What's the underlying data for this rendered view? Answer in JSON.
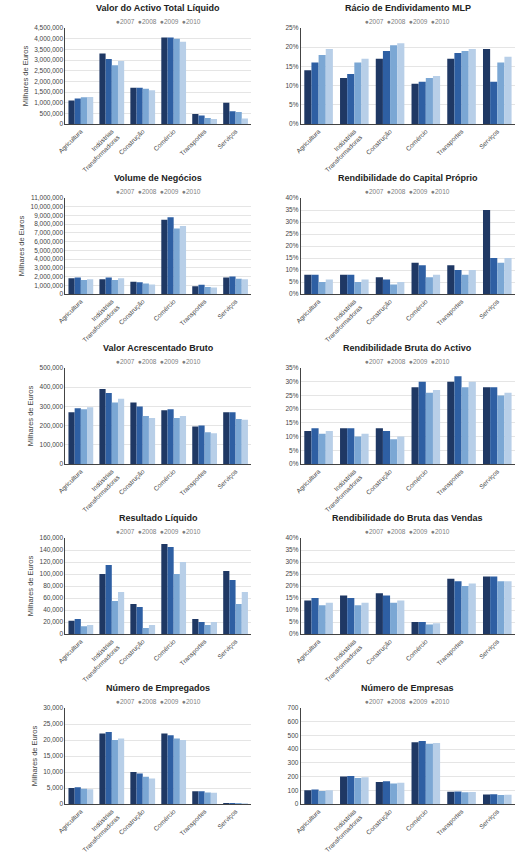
{
  "chart_data": [
    {
      "type": "bar",
      "title": "Valor do Activo Total Líquido",
      "subtitle": "●2007  ●2008  ●2009  ●2010",
      "ylabel": "Milhares de Euros",
      "categories": [
        "Agricultura",
        "Indústrias\nTransformadoras",
        "Construção",
        "Comércio",
        "Transportes",
        "Serviços"
      ],
      "series": [
        {
          "name": "2007",
          "color": "#1f3864",
          "values": [
            1100000,
            3300000,
            1700000,
            4050000,
            470000,
            1000000
          ]
        },
        {
          "name": "2008",
          "color": "#2e5fa3",
          "values": [
            1200000,
            3050000,
            1700000,
            4050000,
            400000,
            600000
          ]
        },
        {
          "name": "2009",
          "color": "#7ba7d4",
          "values": [
            1250000,
            2750000,
            1650000,
            4000000,
            280000,
            560000
          ]
        },
        {
          "name": "2010",
          "color": "#b8cfe8",
          "values": [
            1260000,
            2950000,
            1580000,
            3850000,
            240000,
            260000
          ]
        }
      ],
      "ylim": [
        0,
        4500000
      ],
      "yticks": [
        0,
        {
          "value": 500000,
          "label": "500,000"
        },
        {
          "value": 1000000,
          "label": "1,000,000"
        },
        {
          "value": 1500000,
          "label": "1,500,000"
        },
        {
          "value": 2000000,
          "label": "2,000,000"
        },
        {
          "value": 2500000,
          "label": "2,500,000"
        },
        {
          "value": 3000000,
          "label": "3,000,000"
        },
        {
          "value": 3500000,
          "label": "3,500,000"
        },
        {
          "value": 4000000,
          "label": "4,000,000"
        },
        {
          "value": 4500000,
          "label": "4,500,000"
        }
      ],
      "grid": true
    },
    {
      "type": "bar",
      "title": "Rácio de Endividamento MLP",
      "subtitle": "●2007  ●2008  ●2009  ●2010",
      "categories": [
        "Agricultura",
        "Indústrias\nTransformadoras",
        "Construção",
        "Comércio",
        "Transportes",
        "Serviços"
      ],
      "series": [
        {
          "name": "2007",
          "color": "#1f3864",
          "values": [
            14,
            12,
            17,
            10.5,
            17,
            19.5
          ]
        },
        {
          "name": "2008",
          "color": "#2e5fa3",
          "values": [
            16,
            13,
            19,
            11,
            18.5,
            11
          ]
        },
        {
          "name": "2009",
          "color": "#7ba7d4",
          "values": [
            18,
            16,
            20.5,
            12,
            19,
            16
          ]
        },
        {
          "name": "2010",
          "color": "#b8cfe8",
          "values": [
            19.5,
            17,
            21,
            12.5,
            19.5,
            17.5
          ]
        }
      ],
      "ylim": [
        0,
        25
      ],
      "yticks": [
        {
          "value": 0,
          "label": "0%"
        },
        {
          "value": 5,
          "label": "5%"
        },
        {
          "value": 10,
          "label": "10%"
        },
        {
          "value": 15,
          "label": "15%"
        },
        {
          "value": 20,
          "label": "20%"
        },
        {
          "value": 25,
          "label": "25%"
        }
      ],
      "grid": true
    },
    {
      "type": "bar",
      "title": "Volume de Negócios",
      "subtitle": "●2007  ●2008  ●2009  ●2010",
      "ylabel": "Milhares de Euros",
      "categories": [
        "Agricultura",
        "Indústrias\nTransformadoras",
        "Construção",
        "Comércio",
        "Transportes",
        "Serviços"
      ],
      "series": [
        {
          "name": "2007",
          "color": "#1f3864",
          "values": [
            1800000,
            1700000,
            1400000,
            8500000,
            900000,
            1900000
          ]
        },
        {
          "name": "2008",
          "color": "#2e5fa3",
          "values": [
            1900000,
            1900000,
            1350000,
            8800000,
            1050000,
            2000000
          ]
        },
        {
          "name": "2009",
          "color": "#7ba7d4",
          "values": [
            1600000,
            1600000,
            1200000,
            7500000,
            800000,
            1750000
          ]
        },
        {
          "name": "2010",
          "color": "#b8cfe8",
          "values": [
            1700000,
            1800000,
            1100000,
            7800000,
            750000,
            1700000
          ]
        }
      ],
      "ylim": [
        0,
        11000000
      ],
      "yticks": [
        0,
        {
          "value": 1000000,
          "label": "1,000,000"
        },
        {
          "value": 2000000,
          "label": "2,000,000"
        },
        {
          "value": 3000000,
          "label": "3,000,000"
        },
        {
          "value": 4000000,
          "label": "4,000,000"
        },
        {
          "value": 5000000,
          "label": "5,000,000"
        },
        {
          "value": 6000000,
          "label": "6,000,000"
        },
        {
          "value": 7000000,
          "label": "7,000,000"
        },
        {
          "value": 8000000,
          "label": "8,000,000"
        },
        {
          "value": 9000000,
          "label": "9,000,000"
        },
        {
          "value": 10000000,
          "label": "10,000,000"
        },
        {
          "value": 11000000,
          "label": "11,000,000"
        }
      ],
      "grid": true
    },
    {
      "type": "bar",
      "title": "Rendibilidade do Capital Próprio",
      "subtitle": "●2007  ●2008  ●2009  ●2010",
      "categories": [
        "Agricultura",
        "Indústrias\nTransformadoras",
        "Construção",
        "Comércio",
        "Transportes",
        "Serviços"
      ],
      "series": [
        {
          "name": "2007",
          "color": "#1f3864",
          "values": [
            8,
            8,
            7,
            13,
            12,
            35
          ]
        },
        {
          "name": "2008",
          "color": "#2e5fa3",
          "values": [
            8,
            8,
            6,
            12,
            10,
            15
          ]
        },
        {
          "name": "2009",
          "color": "#7ba7d4",
          "values": [
            5,
            5,
            4,
            7,
            8,
            13
          ]
        },
        {
          "name": "2010",
          "color": "#b8cfe8",
          "values": [
            6,
            6,
            5,
            8,
            10,
            15
          ]
        }
      ],
      "ylim": [
        0,
        40
      ],
      "yticks": [
        {
          "value": 0,
          "label": "0%"
        },
        {
          "value": 5,
          "label": "5%"
        },
        {
          "value": 10,
          "label": "10%"
        },
        {
          "value": 15,
          "label": "15%"
        },
        {
          "value": 20,
          "label": "20%"
        },
        {
          "value": 25,
          "label": "25%"
        },
        {
          "value": 30,
          "label": "30%"
        },
        {
          "value": 35,
          "label": "35%"
        },
        {
          "value": 40,
          "label": "40%"
        }
      ],
      "grid": true
    },
    {
      "type": "bar",
      "title": "Valor Acrescentado Bruto",
      "subtitle": "●2007  ●2008  ●2009  ●2010",
      "ylabel": "Milhares de Euros",
      "categories": [
        "Agricultura",
        "Indústrias\nTransformadoras",
        "Construção",
        "Comércio",
        "Transportes",
        "Serviços"
      ],
      "series": [
        {
          "name": "2007",
          "color": "#1f3864",
          "values": [
            270000,
            390000,
            320000,
            280000,
            195000,
            270000
          ]
        },
        {
          "name": "2008",
          "color": "#2e5fa3",
          "values": [
            290000,
            370000,
            300000,
            285000,
            200000,
            270000
          ]
        },
        {
          "name": "2009",
          "color": "#7ba7d4",
          "values": [
            285000,
            320000,
            250000,
            240000,
            165000,
            235000
          ]
        },
        {
          "name": "2010",
          "color": "#b8cfe8",
          "values": [
            295000,
            340000,
            240000,
            250000,
            160000,
            230000
          ]
        }
      ],
      "ylim": [
        0,
        500000
      ],
      "yticks": [
        0,
        {
          "value": 100000,
          "label": "100,000"
        },
        {
          "value": 200000,
          "label": "200,000"
        },
        {
          "value": 300000,
          "label": "300,000"
        },
        {
          "value": 400000,
          "label": "400,000"
        },
        {
          "value": 500000,
          "label": "500,000"
        }
      ],
      "grid": true
    },
    {
      "type": "bar",
      "title": "Rendibilidade Bruta do Activo",
      "subtitle": "●2007  ●2008  ●2009  ●2010",
      "categories": [
        "Agricultura",
        "Indústrias\nTransformadoras",
        "Construção",
        "Comércio",
        "Transportes",
        "Serviços"
      ],
      "series": [
        {
          "name": "2007",
          "color": "#1f3864",
          "values": [
            12,
            13,
            13,
            28,
            30,
            28
          ]
        },
        {
          "name": "2008",
          "color": "#2e5fa3",
          "values": [
            13,
            13,
            12,
            30,
            32,
            28
          ]
        },
        {
          "name": "2009",
          "color": "#7ba7d4",
          "values": [
            11,
            10,
            9,
            26,
            28,
            25
          ]
        },
        {
          "name": "2010",
          "color": "#b8cfe8",
          "values": [
            12,
            11,
            10,
            27,
            30,
            26
          ]
        }
      ],
      "ylim": [
        0,
        35
      ],
      "yticks": [
        {
          "value": 0,
          "label": "0%"
        },
        {
          "value": 5,
          "label": "5%"
        },
        {
          "value": 10,
          "label": "10%"
        },
        {
          "value": 15,
          "label": "15%"
        },
        {
          "value": 20,
          "label": "20%"
        },
        {
          "value": 25,
          "label": "25%"
        },
        {
          "value": 30,
          "label": "30%"
        },
        {
          "value": 35,
          "label": "35%"
        }
      ],
      "grid": true
    },
    {
      "type": "bar",
      "title": "Resultado Líquido",
      "subtitle": "●2007  ●2008  ●2009  ●2010",
      "ylabel": "Milhares de Euros",
      "categories": [
        "Agricultura",
        "Indústrias\nTransformadoras",
        "Construção",
        "Comércio",
        "Transportes",
        "Serviços"
      ],
      "series": [
        {
          "name": "2007",
          "color": "#1f3864",
          "values": [
            22000,
            100000,
            50000,
            150000,
            25000,
            105000
          ]
        },
        {
          "name": "2008",
          "color": "#2e5fa3",
          "values": [
            25000,
            115000,
            45000,
            145000,
            20000,
            90000
          ]
        },
        {
          "name": "2009",
          "color": "#7ba7d4",
          "values": [
            13000,
            55000,
            10000,
            100000,
            15000,
            50000
          ]
        },
        {
          "name": "2010",
          "color": "#b8cfe8",
          "values": [
            15000,
            70000,
            15000,
            120000,
            20000,
            70000
          ]
        }
      ],
      "ylim": [
        0,
        160000
      ],
      "yticks": [
        0,
        {
          "value": 20000,
          "label": "20,000"
        },
        {
          "value": 40000,
          "label": "40,000"
        },
        {
          "value": 60000,
          "label": "60,000"
        },
        {
          "value": 80000,
          "label": "80,000"
        },
        {
          "value": 100000,
          "label": "100,000"
        },
        {
          "value": 120000,
          "label": "120,000"
        },
        {
          "value": 140000,
          "label": "140,000"
        },
        {
          "value": 160000,
          "label": "160,000"
        }
      ],
      "grid": true
    },
    {
      "type": "bar",
      "title": "Rendibilidade do Bruta das Vendas",
      "subtitle": "●2007  ●2008  ●2009  ●2010",
      "categories": [
        "Agricultura",
        "Indústrias\nTransformadoras",
        "Construção",
        "Comércio",
        "Transportes",
        "Serviços"
      ],
      "series": [
        {
          "name": "2007",
          "color": "#1f3864",
          "values": [
            14,
            16,
            17,
            5,
            23,
            24
          ]
        },
        {
          "name": "2008",
          "color": "#2e5fa3",
          "values": [
            15,
            15,
            16,
            5,
            22,
            24
          ]
        },
        {
          "name": "2009",
          "color": "#7ba7d4",
          "values": [
            12,
            12,
            13,
            4,
            20,
            22
          ]
        },
        {
          "name": "2010",
          "color": "#b8cfe8",
          "values": [
            13,
            13,
            14,
            4.5,
            21,
            22
          ]
        }
      ],
      "ylim": [
        0,
        40
      ],
      "yticks": [
        {
          "value": 0,
          "label": "0%"
        },
        {
          "value": 5,
          "label": "5%"
        },
        {
          "value": 10,
          "label": "10%"
        },
        {
          "value": 15,
          "label": "15%"
        },
        {
          "value": 20,
          "label": "20%"
        },
        {
          "value": 25,
          "label": "25%"
        },
        {
          "value": 30,
          "label": "30%"
        },
        {
          "value": 35,
          "label": "35%"
        },
        {
          "value": 40,
          "label": "40%"
        }
      ],
      "grid": true
    },
    {
      "type": "bar",
      "title": "Número de Empregados",
      "subtitle": "●2007  ●2008  ●2009  ●2010",
      "ylabel": "Milhares de Euros",
      "categories": [
        "Agricultura",
        "Indústrias\nTransformadoras",
        "Construção",
        "Comércio",
        "Transportes",
        "Serviços"
      ],
      "series": [
        {
          "name": "2007",
          "color": "#1f3864",
          "values": [
            5000,
            22000,
            10000,
            22000,
            4000,
            300
          ]
        },
        {
          "name": "2008",
          "color": "#2e5fa3",
          "values": [
            5200,
            22500,
            9500,
            21500,
            4000,
            310
          ]
        },
        {
          "name": "2009",
          "color": "#7ba7d4",
          "values": [
            4800,
            20000,
            8500,
            20500,
            3600,
            280
          ]
        },
        {
          "name": "2010",
          "color": "#b8cfe8",
          "values": [
            4600,
            20500,
            8000,
            20000,
            3500,
            270
          ]
        }
      ],
      "ylim": [
        0,
        30000
      ],
      "yticks": [
        0,
        {
          "value": 5000,
          "label": "5,000"
        },
        {
          "value": 10000,
          "label": "10,000"
        },
        {
          "value": 15000,
          "label": "15,000"
        },
        {
          "value": 20000,
          "label": "20,000"
        },
        {
          "value": 25000,
          "label": "25,000"
        },
        {
          "value": 30000,
          "label": "30,000"
        }
      ],
      "grid": true
    },
    {
      "type": "bar",
      "title": "Número de Empresas",
      "subtitle": "●2007  ●2008  ●2009  ●2010",
      "categories": [
        "Agricultura",
        "Indústrias\nTransformadoras",
        "Construção",
        "Comércio",
        "Transportes",
        "Serviços"
      ],
      "series": [
        {
          "name": "2007",
          "color": "#1f3864",
          "values": [
            100,
            200,
            160,
            450,
            90,
            70
          ]
        },
        {
          "name": "2008",
          "color": "#2e5fa3",
          "values": [
            105,
            205,
            165,
            460,
            92,
            72
          ]
        },
        {
          "name": "2009",
          "color": "#7ba7d4",
          "values": [
            95,
            190,
            150,
            440,
            85,
            65
          ]
        },
        {
          "name": "2010",
          "color": "#b8cfe8",
          "values": [
            100,
            195,
            155,
            445,
            88,
            68
          ]
        }
      ],
      "ylim": [
        0,
        700
      ],
      "yticks": [
        0,
        100,
        200,
        300,
        400,
        500,
        600,
        700
      ],
      "grid": true
    }
  ]
}
